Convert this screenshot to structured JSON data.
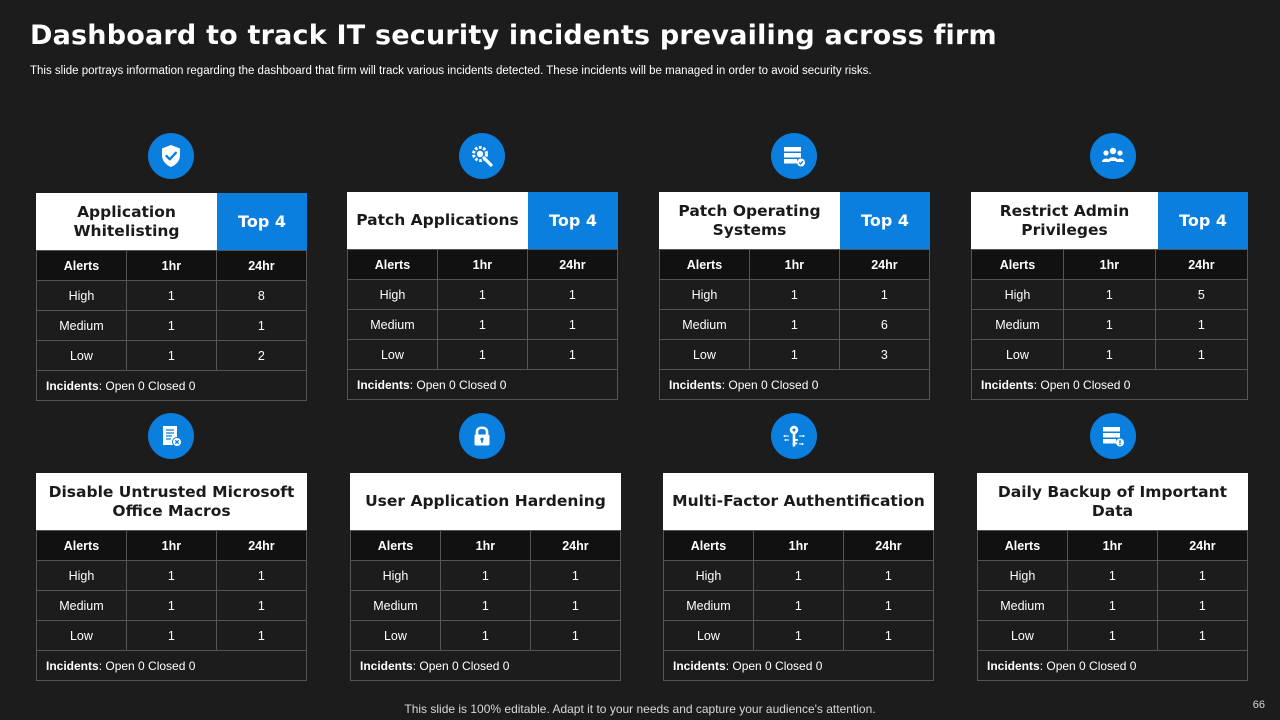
{
  "header": {
    "title": "Dashboard to track IT security incidents prevailing across firm",
    "subtitle": "This slide portrays information regarding the dashboard that firm will track various incidents detected. These incidents will be managed in order to avoid security risks."
  },
  "table_headers": {
    "alerts": "Alerts",
    "h1": "1hr",
    "h24": "24hr"
  },
  "incidents_label": "Incidents",
  "cards": [
    {
      "title": "Application Whitelisting",
      "badge": "Top 4",
      "icon": "shield-check-icon",
      "rows": [
        {
          "label": "High",
          "h1": "1",
          "h24": "8"
        },
        {
          "label": "Medium",
          "h1": "1",
          "h24": "1"
        },
        {
          "label": "Low",
          "h1": "1",
          "h24": "2"
        }
      ],
      "incidents": ": Open 0 Closed 0"
    },
    {
      "title": "Patch Applications",
      "badge": "Top 4",
      "icon": "gear-wrench-icon",
      "rows": [
        {
          "label": "High",
          "h1": "1",
          "h24": "1"
        },
        {
          "label": "Medium",
          "h1": "1",
          "h24": "1"
        },
        {
          "label": "Low",
          "h1": "1",
          "h24": "1"
        }
      ],
      "incidents": ": Open 0 Closed 0"
    },
    {
      "title": "Patch Operating Systems",
      "badge": "Top 4",
      "icon": "server-check-icon",
      "rows": [
        {
          "label": "High",
          "h1": "1",
          "h24": "1"
        },
        {
          "label": "Medium",
          "h1": "1",
          "h24": "6"
        },
        {
          "label": "Low",
          "h1": "1",
          "h24": "3"
        }
      ],
      "incidents": ": Open 0 Closed 0"
    },
    {
      "title": "Restrict Admin Privileges",
      "badge": "Top 4",
      "icon": "users-group-icon",
      "rows": [
        {
          "label": "High",
          "h1": "1",
          "h24": "5"
        },
        {
          "label": "Medium",
          "h1": "1",
          "h24": "1"
        },
        {
          "label": "Low",
          "h1": "1",
          "h24": "1"
        }
      ],
      "incidents": ": Open 0 Closed 0"
    },
    {
      "title": "Disable Untrusted Microsoft Office Macros",
      "badge": "",
      "icon": "document-x-icon",
      "rows": [
        {
          "label": "High",
          "h1": "1",
          "h24": "1"
        },
        {
          "label": "Medium",
          "h1": "1",
          "h24": "1"
        },
        {
          "label": "Low",
          "h1": "1",
          "h24": "1"
        }
      ],
      "incidents": ": Open 0 Closed 0"
    },
    {
      "title": "User Application Hardening",
      "badge": "",
      "icon": "padlock-icon",
      "rows": [
        {
          "label": "High",
          "h1": "1",
          "h24": "1"
        },
        {
          "label": "Medium",
          "h1": "1",
          "h24": "1"
        },
        {
          "label": "Low",
          "h1": "1",
          "h24": "1"
        }
      ],
      "incidents": ": Open 0 Closed 0"
    },
    {
      "title": "Multi-Factor Authentification",
      "badge": "",
      "icon": "key-circuit-icon",
      "rows": [
        {
          "label": "High",
          "h1": "1",
          "h24": "1"
        },
        {
          "label": "Medium",
          "h1": "1",
          "h24": "1"
        },
        {
          "label": "Low",
          "h1": "1",
          "h24": "1"
        }
      ],
      "incidents": ": Open 0 Closed 0"
    },
    {
      "title": "Daily Backup of Important Data",
      "badge": "",
      "icon": "server-alert-icon",
      "rows": [
        {
          "label": "High",
          "h1": "1",
          "h24": "1"
        },
        {
          "label": "Medium",
          "h1": "1",
          "h24": "1"
        },
        {
          "label": "Low",
          "h1": "1",
          "h24": "1"
        }
      ],
      "incidents": ": Open 0 Closed 0"
    }
  ],
  "footer": {
    "note": "This slide is 100% editable. Adapt it to your needs and capture your audience's attention.",
    "page_number": "66"
  },
  "colors": {
    "accent": "#0a7fde",
    "background": "#1c1c1c"
  }
}
